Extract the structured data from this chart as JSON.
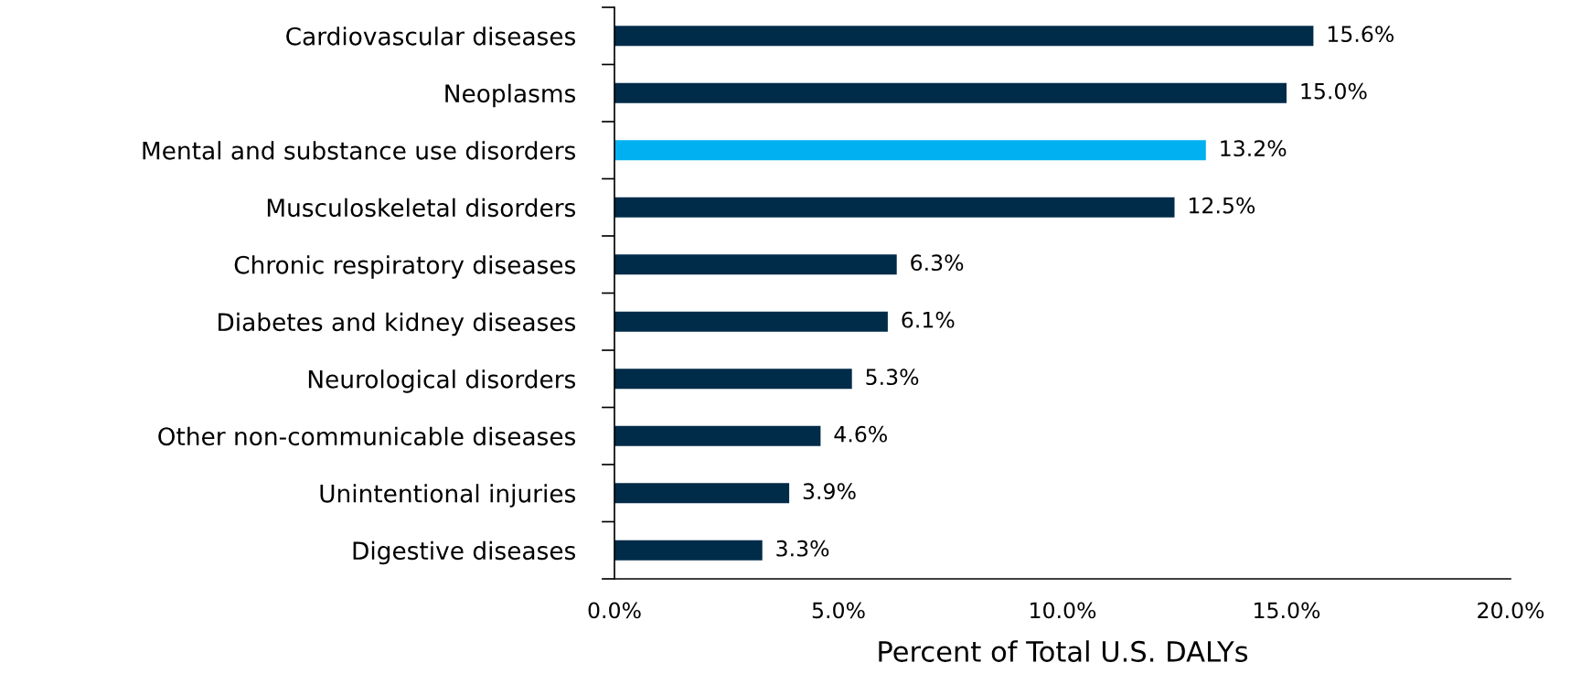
{
  "chart_data": {
    "type": "bar",
    "orientation": "horizontal",
    "xlabel": "Percent of Total U.S. DALYs",
    "categories": [
      "Cardiovascular diseases",
      "Neoplasms",
      "Mental and substance use disorders",
      "Musculoskeletal disorders",
      "Chronic respiratory diseases",
      "Diabetes and kidney diseases",
      "Neurological disorders",
      "Other non-communicable diseases",
      "Unintentional injuries",
      "Digestive diseases"
    ],
    "values": [
      15.6,
      15.0,
      13.2,
      12.5,
      6.3,
      6.1,
      5.3,
      4.6,
      3.9,
      3.3
    ],
    "value_labels": [
      "15.6%",
      "15.0%",
      "13.2%",
      "12.5%",
      "6.3%",
      "6.1%",
      "5.3%",
      "4.6%",
      "3.9%",
      "3.3%"
    ],
    "colors": [
      "#002b49",
      "#002b49",
      "#00b0f0",
      "#002b49",
      "#002b49",
      "#002b49",
      "#002b49",
      "#002b49",
      "#002b49",
      "#002b49"
    ],
    "xlim": [
      0,
      20
    ],
    "xticks": [
      {
        "value": 0,
        "label": "0.0%"
      },
      {
        "value": 5,
        "label": "5.0%"
      },
      {
        "value": 10,
        "label": "10.0%"
      },
      {
        "value": 15,
        "label": "15.0%"
      },
      {
        "value": 20,
        "label": "20.0%"
      }
    ],
    "grid": false,
    "legend": false
  }
}
